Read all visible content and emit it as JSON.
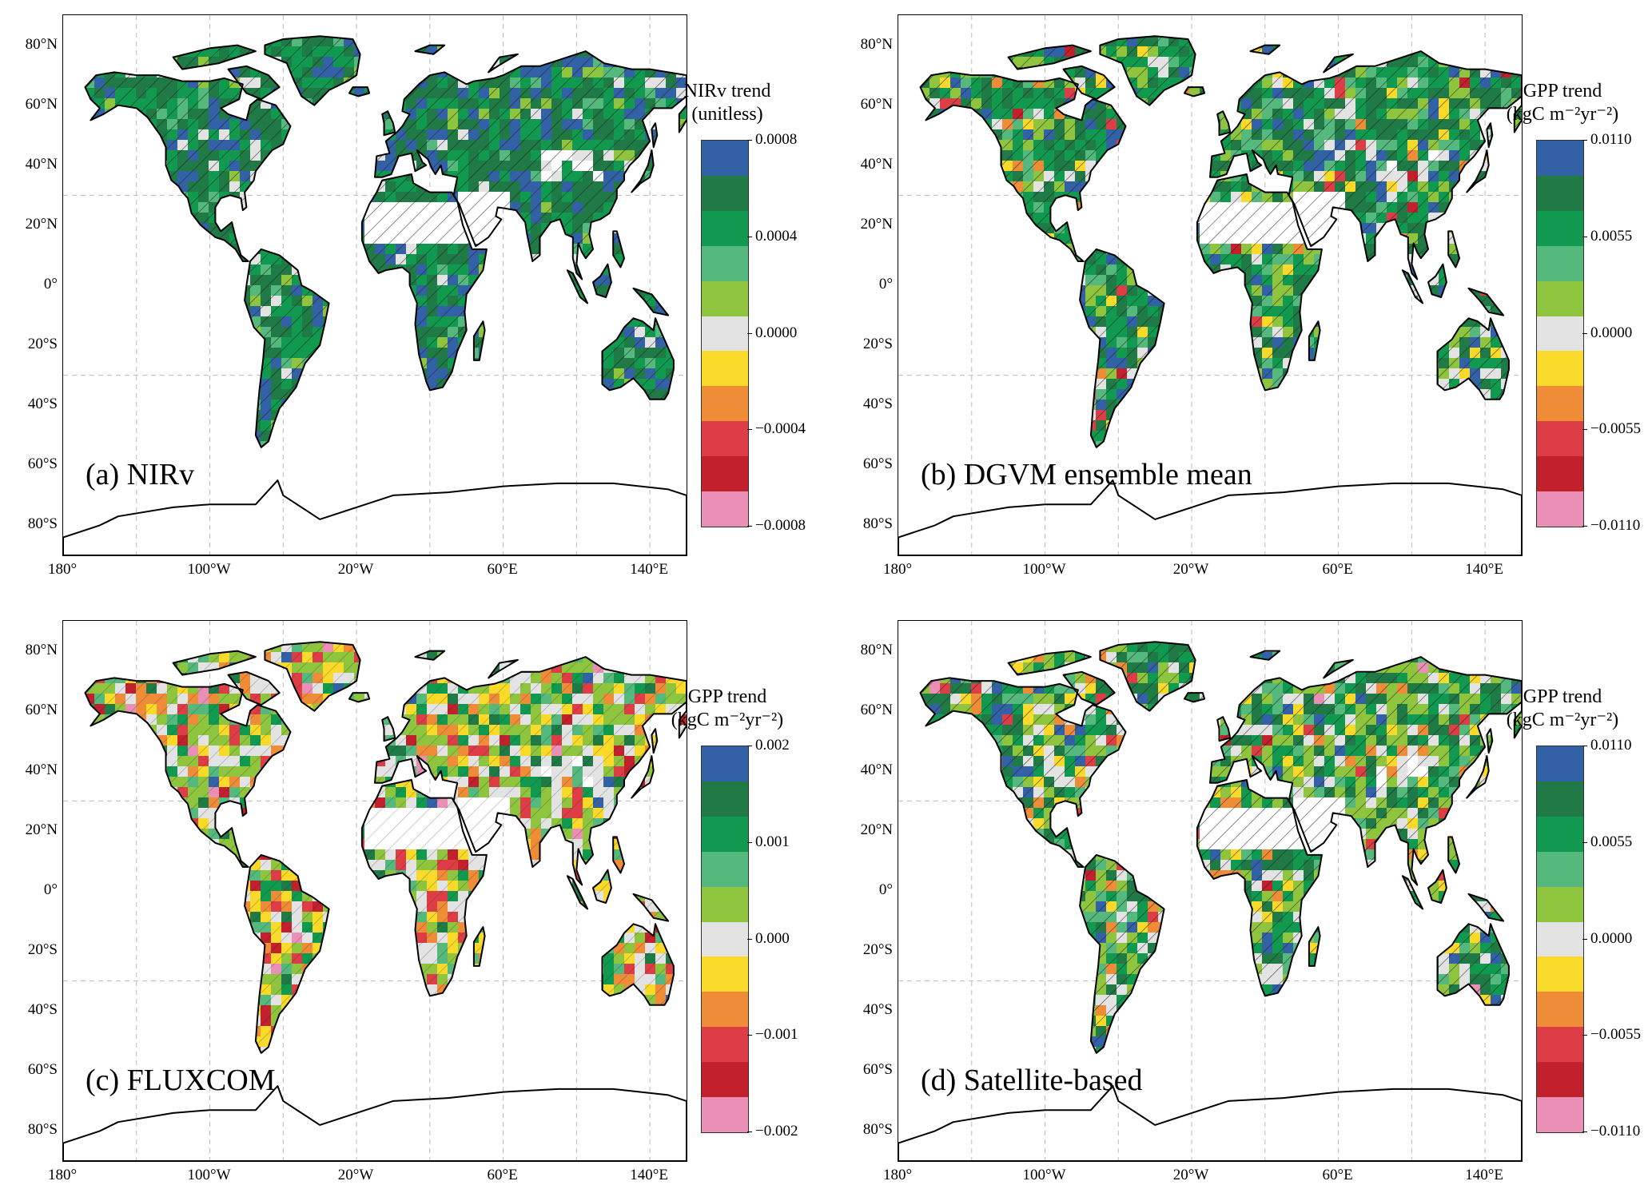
{
  "figure": {
    "colors": {
      "scale": [
        "#3361a6",
        "#1f7a45",
        "#119a4f",
        "#55b87d",
        "#8fc43e",
        "#e3e3e3",
        "#f9d92a",
        "#ee8c37",
        "#dd3e46",
        "#c2202c",
        "#ea8fb6"
      ]
    },
    "latitude_ticks": [
      "80°N",
      "60°N",
      "40°N",
      "20°N",
      "0°",
      "20°S",
      "40°S",
      "60°S",
      "80°S"
    ],
    "longitude_ticks": [
      "180°",
      "100°W",
      "20°W",
      "60°E",
      "140°E"
    ]
  },
  "panels": [
    {
      "label": "(a) NIRv",
      "colorbar": {
        "title_line1": "NIRv trend",
        "title_line2": "(unitless)",
        "ticks": [
          "0.0008",
          "0.0004",
          "0.0000",
          "−0.0004",
          "−0.0008"
        ]
      }
    },
    {
      "label": "(b) DGVM ensemble mean",
      "colorbar": {
        "title_line1": "GPP trend",
        "title_line2": "(kgC m⁻²yr⁻²)",
        "ticks": [
          "0.0110",
          "0.0055",
          "0.0000",
          "−0.0055",
          "−0.0110"
        ]
      }
    },
    {
      "label": "(c) FLUXCOM",
      "colorbar": {
        "title_line1": "GPP trend",
        "title_line2": "(kgC m⁻²yr⁻²)",
        "ticks": [
          "0.002",
          "0.001",
          "0.000",
          "−0.001",
          "−0.002"
        ]
      }
    },
    {
      "label": "(d) Satellite-based",
      "colorbar": {
        "title_line1": "GPP trend",
        "title_line2": "(kgC m⁻²yr⁻²)",
        "ticks": [
          "0.0110",
          "0.0055",
          "0.0000",
          "−0.0055",
          "−0.0110"
        ]
      }
    }
  ]
}
